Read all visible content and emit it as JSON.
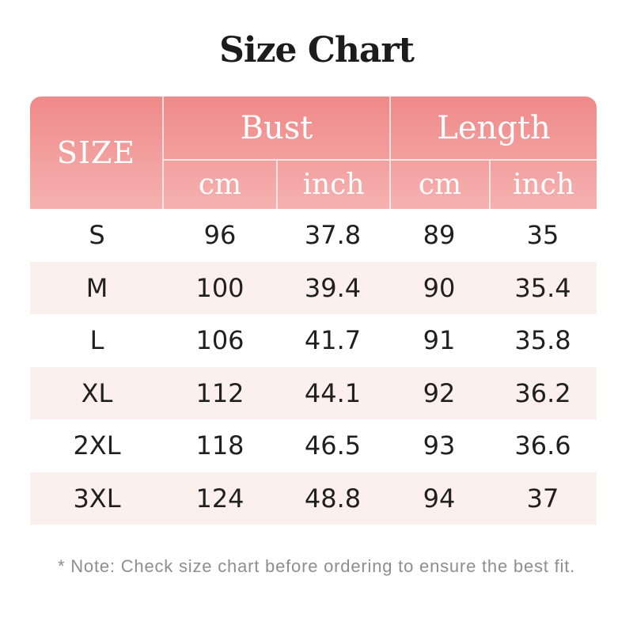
{
  "title": "Size Chart",
  "header": {
    "size_label": "SIZE",
    "bust_label": "Bust",
    "length_label": "Length",
    "cm_label": "cm",
    "inch_label": "inch"
  },
  "rows": [
    {
      "size": "S",
      "bust_cm": "96",
      "bust_inch": "37.8",
      "length_cm": "89",
      "length_inch": "35"
    },
    {
      "size": "M",
      "bust_cm": "100",
      "bust_inch": "39.4",
      "length_cm": "90",
      "length_inch": "35.4"
    },
    {
      "size": "L",
      "bust_cm": "106",
      "bust_inch": "41.7",
      "length_cm": "91",
      "length_inch": "35.8"
    },
    {
      "size": "XL",
      "bust_cm": "112",
      "bust_inch": "44.1",
      "length_cm": "92",
      "length_inch": "36.2"
    },
    {
      "size": "2XL",
      "bust_cm": "118",
      "bust_inch": "46.5",
      "length_cm": "93",
      "length_inch": "36.6"
    },
    {
      "size": "3XL",
      "bust_cm": "124",
      "bust_inch": "48.8",
      "length_cm": "94",
      "length_inch": "37"
    }
  ],
  "note": "* Note: Check size chart before ordering to ensure the best fit.",
  "chart_data": {
    "type": "table",
    "title": "Size Chart",
    "column_groups": [
      {
        "label": "SIZE",
        "span": 1
      },
      {
        "label": "Bust",
        "span": 2,
        "units": [
          "cm",
          "inch"
        ]
      },
      {
        "label": "Length",
        "span": 2,
        "units": [
          "cm",
          "inch"
        ]
      }
    ],
    "columns": [
      "SIZE",
      "Bust cm",
      "Bust inch",
      "Length cm",
      "Length inch"
    ],
    "rows": [
      [
        "S",
        96,
        37.8,
        89,
        35
      ],
      [
        "M",
        100,
        39.4,
        90,
        35.4
      ],
      [
        "L",
        106,
        41.7,
        91,
        35.8
      ],
      [
        "XL",
        112,
        44.1,
        92,
        36.2
      ],
      [
        "2XL",
        118,
        46.5,
        93,
        36.6
      ],
      [
        "3XL",
        124,
        48.8,
        94,
        37
      ]
    ],
    "note": "* Note: Check size chart before ordering to ensure the best fit."
  },
  "colors": {
    "header_gradient_top": "#ef8989",
    "header_gradient_bottom": "#f5b2b0",
    "row_alternate": "#fcf0ee",
    "row_default": "#ffffff",
    "header_divider": "rgba(255,255,255,0.7)",
    "header_text": "#ffffff",
    "body_text": "#202020",
    "note_text": "#8e8e8e",
    "title_text": "#1c1c1c"
  }
}
